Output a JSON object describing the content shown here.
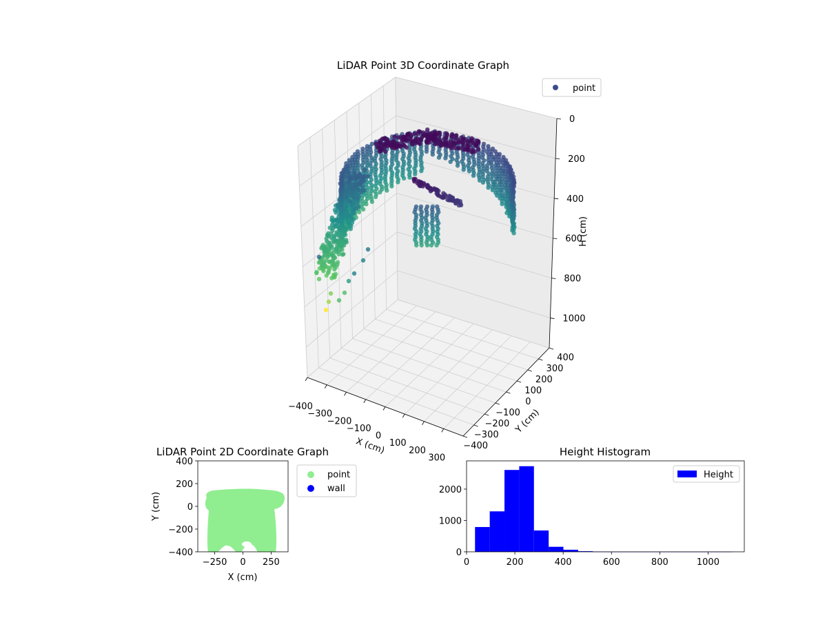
{
  "chart_data": [
    {
      "type": "scatter",
      "projection": "3d",
      "title": "LiDAR Point 3D Coordinate Graph",
      "xlabel": "X (cm)",
      "ylabel": "Y (cm)",
      "zlabel": "H (cm)",
      "xlim": [
        -400,
        400
      ],
      "ylim": [
        -400,
        400
      ],
      "zlim": [
        1150,
        0
      ],
      "x_ticks": [
        "−400",
        "−300",
        "−200",
        "−100",
        "0",
        "100",
        "200",
        "300"
      ],
      "y_ticks": [
        "−400",
        "−300",
        "−200",
        "−100",
        "0",
        "100",
        "200",
        "300",
        "400"
      ],
      "z_ticks": [
        "0",
        "200",
        "400",
        "600",
        "800",
        "1000"
      ],
      "legend": {
        "position": "top-right",
        "entries": [
          {
            "label": "point",
            "color": "#3b4c8c"
          }
        ]
      },
      "colormap": "viridis",
      "grid": true
    },
    {
      "type": "scatter",
      "title": "LiDAR Point 2D Coordinate Graph",
      "xlabel": "X (cm)",
      "ylabel": "Y (cm)",
      "xlim": [
        -400,
        400
      ],
      "ylim": [
        -400,
        400
      ],
      "x_ticks": [
        "−250",
        "0",
        "250"
      ],
      "y_ticks": [
        "400",
        "200",
        "0",
        "−200",
        "−400"
      ],
      "series": [
        {
          "name": "point",
          "color": "#90ee90"
        },
        {
          "name": "wall",
          "color": "#0000ff"
        }
      ],
      "legend": {
        "position": "outside-right"
      }
    },
    {
      "type": "bar",
      "subtype": "histogram",
      "title": "Height Histogram",
      "xlabel": "",
      "ylabel": "",
      "xlim": [
        0,
        1150
      ],
      "ylim": [
        0,
        2900
      ],
      "x_ticks": [
        "0",
        "200",
        "400",
        "600",
        "800",
        "1000"
      ],
      "y_ticks": [
        "0",
        "1000",
        "2000"
      ],
      "series": [
        {
          "name": "Height",
          "color": "#0000ff"
        }
      ],
      "bins": [
        {
          "x0": 35,
          "x1": 96,
          "value": 790
        },
        {
          "x0": 96,
          "x1": 157,
          "value": 1290
        },
        {
          "x0": 157,
          "x1": 218,
          "value": 2610
        },
        {
          "x0": 218,
          "x1": 279,
          "value": 2730
        },
        {
          "x0": 279,
          "x1": 340,
          "value": 680
        },
        {
          "x0": 340,
          "x1": 401,
          "value": 160
        },
        {
          "x0": 401,
          "x1": 462,
          "value": 65
        },
        {
          "x0": 462,
          "x1": 523,
          "value": 20
        },
        {
          "x0": 523,
          "x1": 584,
          "value": 6
        },
        {
          "x0": 584,
          "x1": 1100,
          "value": 2
        }
      ],
      "legend": {
        "position": "top-right"
      }
    }
  ]
}
